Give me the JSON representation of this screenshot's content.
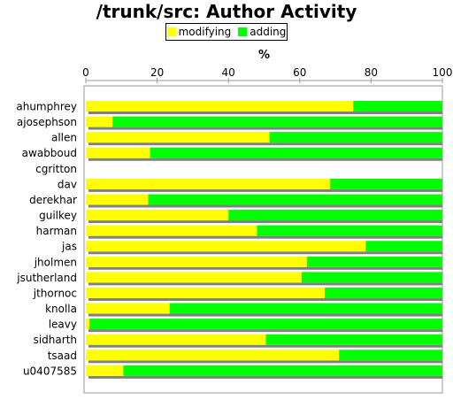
{
  "chart_data": {
    "type": "bar",
    "orientation": "horizontal",
    "stacked": true,
    "title": "/trunk/src: Author Activity",
    "xlabel": "%",
    "ylabel": "",
    "xlim": [
      0,
      100
    ],
    "xticks": [
      0,
      20,
      40,
      60,
      80,
      100
    ],
    "grid": false,
    "legend_position": "top-center",
    "categories": [
      "ahumphrey",
      "ajosephson",
      "allen",
      "awabboud",
      "cgritton",
      "dav",
      "derekhar",
      "guilkey",
      "harman",
      "jas",
      "jholmen",
      "jsutherland",
      "jthornoc",
      "knolla",
      "leavy",
      "sidharth",
      "tsaad",
      "u0407585"
    ],
    "series": [
      {
        "name": "modifying",
        "color": "#ffff00",
        "values": [
          75,
          7.5,
          51.5,
          18,
          0,
          68.5,
          17.5,
          40,
          48,
          78.5,
          62,
          60.5,
          67,
          23.5,
          1,
          50.5,
          71,
          10.5
        ]
      },
      {
        "name": "adding",
        "color": "#00ff00",
        "values": [
          25,
          92.5,
          48.5,
          82,
          0,
          31.5,
          82.5,
          60,
          52,
          21.5,
          38,
          39.5,
          33,
          76.5,
          99,
          49.5,
          29,
          89.5
        ]
      }
    ]
  }
}
